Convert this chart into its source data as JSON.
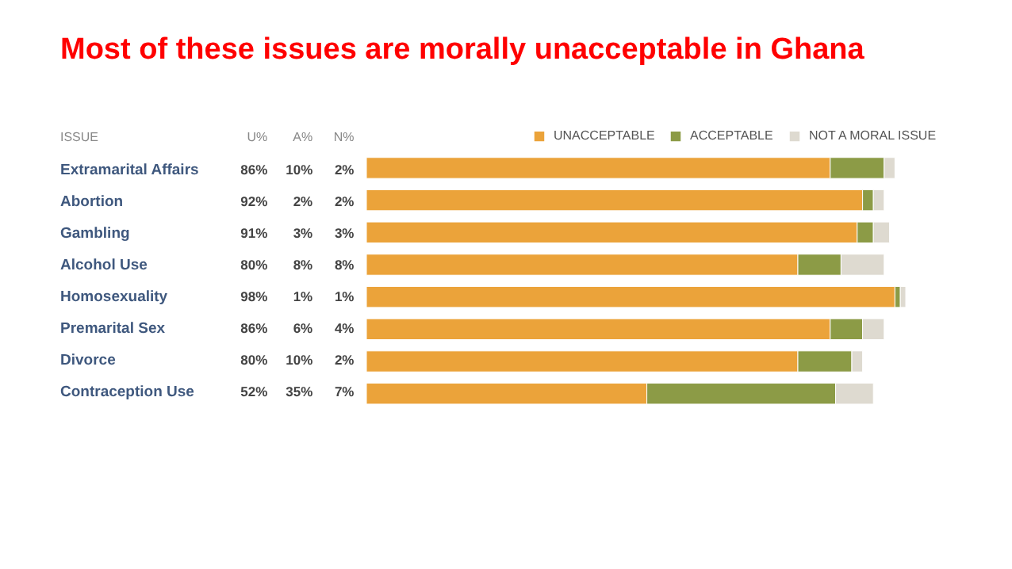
{
  "chart_data": {
    "type": "bar",
    "orientation": "horizontal",
    "stacked": true,
    "title": "Most of these issues are morally unacceptable in Ghana",
    "categories": [
      "Extramarital Affairs",
      "Abortion",
      "Gambling",
      "Alcohol Use",
      "Homosexuality",
      "Premarital Sex",
      "Divorce",
      "Contraception Use"
    ],
    "series": [
      {
        "name": "UNACCEPTABLE",
        "color": "#eba33a",
        "values": [
          86,
          92,
          91,
          80,
          98,
          86,
          80,
          52
        ],
        "value_labels": [
          "86%",
          "92%",
          "91%",
          "80%",
          "98%",
          "86%",
          "80%",
          "52%"
        ]
      },
      {
        "name": "ACCEPTABLE",
        "color": "#8c9b46",
        "values": [
          10,
          2,
          3,
          8,
          1,
          6,
          10,
          35
        ],
        "value_labels": [
          "10%",
          "2%",
          "3%",
          "8%",
          "1%",
          "6%",
          "10%",
          "35%"
        ]
      },
      {
        "name": "NOT A MORAL ISSUE",
        "color": "#dedad0",
        "values": [
          2,
          2,
          3,
          8,
          1,
          4,
          2,
          7
        ],
        "value_labels": [
          "2%",
          "2%",
          "3%",
          "8%",
          "1%",
          "4%",
          "2%",
          "7%"
        ]
      }
    ],
    "annotations": [
      "ISSUE",
      "U%",
      "A%",
      "N%"
    ],
    "legend": "top right",
    "tick_labels": "y"
  }
}
